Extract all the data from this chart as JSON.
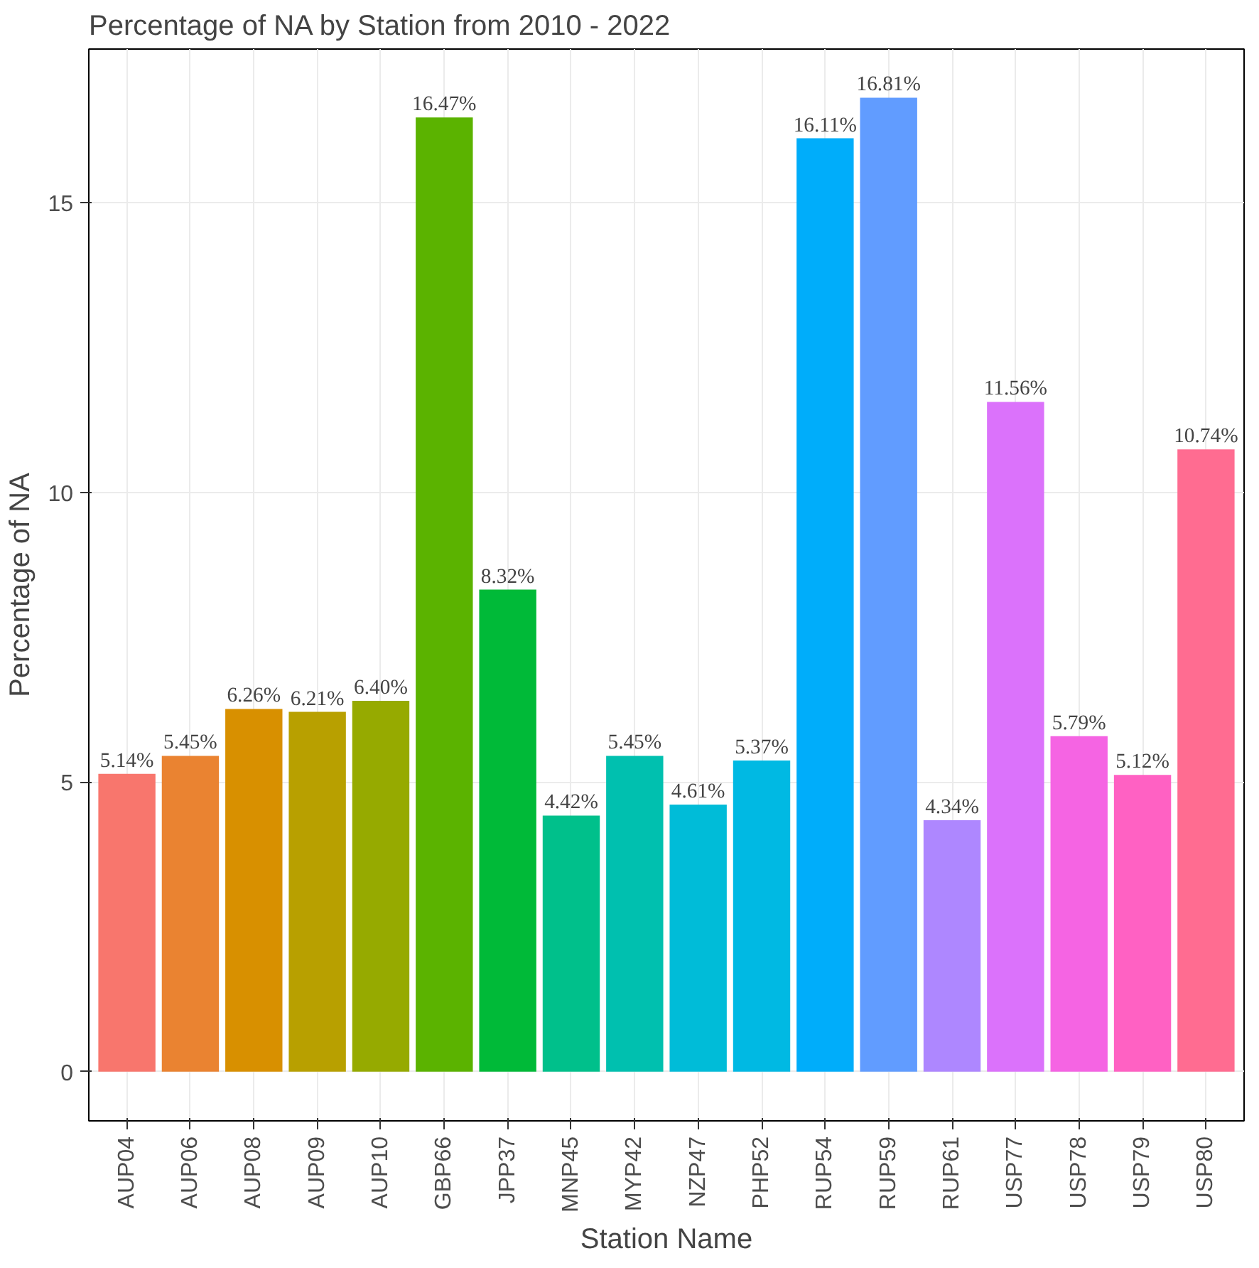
{
  "chart_data": {
    "type": "bar",
    "title": "Percentage of NA by Station from 2010 - 2022",
    "xlabel": "Station Name",
    "ylabel": "Percentage of NA",
    "categories": [
      "AUP04",
      "AUP06",
      "AUP08",
      "AUP09",
      "AUP10",
      "GBP66",
      "JPP37",
      "MNP45",
      "MYP42",
      "NZP47",
      "PHP52",
      "RUP54",
      "RUP59",
      "RUP61",
      "USP77",
      "USP78",
      "USP79",
      "USP80"
    ],
    "values": [
      5.14,
      5.45,
      6.26,
      6.21,
      6.4,
      16.47,
      8.32,
      4.42,
      5.45,
      4.61,
      5.37,
      16.11,
      16.81,
      4.34,
      11.56,
      5.79,
      5.12,
      10.74
    ],
    "value_labels": [
      "5.14%",
      "5.45%",
      "6.26%",
      "6.21%",
      "6.40%",
      "16.47%",
      "8.32%",
      "4.42%",
      "5.45%",
      "4.61%",
      "5.37%",
      "16.11%",
      "16.81%",
      "4.34%",
      "11.56%",
      "5.79%",
      "5.12%",
      "10.74%"
    ],
    "colors": [
      "#f8766d",
      "#ea8331",
      "#d89000",
      "#b8a000",
      "#96aa00",
      "#5bb300",
      "#00ba38",
      "#00c08b",
      "#00c0af",
      "#00bcd8",
      "#00b9e3",
      "#00adfa",
      "#619cff",
      "#ae87ff",
      "#db72fb",
      "#f564e3",
      "#ff61c3",
      "#ff6c91"
    ],
    "ylim": [
      -0.85,
      17.65
    ],
    "yticks": [
      0,
      5,
      10,
      15
    ],
    "grid": true
  }
}
